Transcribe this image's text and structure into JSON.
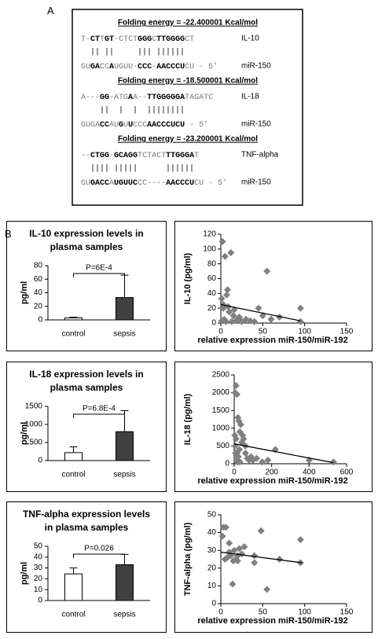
{
  "panel_labels": [
    "A",
    "B"
  ],
  "alignments": [
    {
      "energy": "Folding energy = -22.400001 Kcal/mol",
      "seq1": [
        {
          "text": "T-",
          "bold": false
        },
        {
          "text": "CT",
          "bold": true
        },
        {
          "text": "T",
          "bold": false
        },
        {
          "text": "GT",
          "bold": true
        },
        {
          "text": "-C",
          "bold": false
        },
        {
          "text": "TCT",
          "bold": false
        },
        {
          "text": "GGG",
          "bold": true
        },
        {
          "text": "C",
          "bold": false
        },
        {
          "text": "TTGGGG",
          "bold": true
        },
        {
          "text": "CT",
          "bold": false
        }
      ],
      "label1": "IL-10",
      "pairs": "  || ||     ||| ||||||",
      "seq2": [
        {
          "text": "GU",
          "bold": false
        },
        {
          "text": "GA",
          "bold": true
        },
        {
          "text": "CC",
          "bold": false
        },
        {
          "text": "A",
          "bold": true
        },
        {
          "text": "UGUU-",
          "bold": false
        },
        {
          "text": "CCC",
          "bold": true
        },
        {
          "text": "-",
          "bold": false
        },
        {
          "text": "AACCCU",
          "bold": true
        },
        {
          "text": "CU - 5′",
          "bold": false
        }
      ],
      "label2": "miR-150"
    },
    {
      "energy": "Folding energy = -18.500001 Kcal/mol",
      "seq1": [
        {
          "text": "A---",
          "bold": false
        },
        {
          "text": "GG",
          "bold": true
        },
        {
          "text": "-ATG",
          "bold": false
        },
        {
          "text": "A",
          "bold": true
        },
        {
          "text": "A--",
          "bold": false
        },
        {
          "text": "TTGGGGGA",
          "bold": true
        },
        {
          "text": "TAGATC",
          "bold": false
        }
      ],
      "label1": "IL-18",
      "pairs": "    ||  |  |  ||||||||",
      "seq2": [
        {
          "text": "GUGA",
          "bold": false
        },
        {
          "text": "CC",
          "bold": true
        },
        {
          "text": "AU",
          "bold": false
        },
        {
          "text": "G",
          "bold": true
        },
        {
          "text": "U",
          "bold": false
        },
        {
          "text": "U",
          "bold": true
        },
        {
          "text": "CCC",
          "bold": false
        },
        {
          "text": "AACCCUCU",
          "bold": true
        },
        {
          "text": " - 5′",
          "bold": false
        }
      ],
      "label2": "miR-150"
    },
    {
      "energy": "Folding energy = -23.200001 Kcal/mol",
      "seq1": [
        {
          "text": "--",
          "bold": false
        },
        {
          "text": "CTGG",
          "bold": true
        },
        {
          "text": "-",
          "bold": false
        },
        {
          "text": "GCAGG",
          "bold": true
        },
        {
          "text": "TCTACT",
          "bold": false
        },
        {
          "text": "TTGGGA",
          "bold": true
        },
        {
          "text": "T",
          "bold": false
        }
      ],
      "label1": "TNF-alpha",
      "pairs": "  |||| |||||      ||||||",
      "seq2": [
        {
          "text": "GU",
          "bold": false
        },
        {
          "text": "GACC",
          "bold": true
        },
        {
          "text": "A",
          "bold": false
        },
        {
          "text": "UGUUC",
          "bold": true
        },
        {
          "text": "CC----",
          "bold": false
        },
        {
          "text": "AACCCU",
          "bold": true
        },
        {
          "text": "CU - 5′",
          "bold": false
        }
      ],
      "label2": "miR-150"
    }
  ],
  "chart_data": [
    {
      "type": "bar",
      "title": "IL-10 expression levels in plasma samples",
      "ylabel": "pg/ml",
      "categories": [
        "control",
        "sepsis"
      ],
      "values": [
        3,
        33
      ],
      "errors": [
        1,
        33
      ],
      "colors": [
        "#ffffff",
        "#404040"
      ],
      "annotation": "P=6E-4",
      "ylim": [
        0,
        80
      ],
      "yticks": [
        0,
        20,
        40,
        60,
        80
      ]
    },
    {
      "type": "scatter",
      "ylabel": "IL-10 (pg/ml)",
      "xlabel": "relative expression miR-150/miR-192",
      "color": "#808080",
      "x": [
        1,
        2,
        3,
        5,
        7,
        8,
        12,
        4,
        6,
        10,
        15,
        18,
        20,
        22,
        25,
        3,
        9,
        30,
        40,
        45,
        50,
        55,
        60,
        70,
        95,
        95,
        13,
        1,
        16,
        35
      ],
      "y": [
        33,
        110,
        20,
        90,
        38,
        45,
        95,
        5,
        2,
        15,
        10,
        3,
        5,
        8,
        2,
        25,
        22,
        5,
        2,
        20,
        10,
        70,
        5,
        8,
        20,
        2,
        2,
        3,
        18,
        3
      ],
      "trend": {
        "x": [
          0,
          95
        ],
        "y": [
          25,
          3
        ]
      },
      "xlim": [
        0,
        150
      ],
      "xticks": [
        0,
        50,
        100,
        150
      ],
      "ylim": [
        0,
        120
      ],
      "yticks": [
        0,
        20,
        40,
        60,
        80,
        100,
        120
      ]
    },
    {
      "type": "bar",
      "title": "IL-18 expression levels in plasma samples",
      "ylabel": "pg/ml",
      "categories": [
        "control",
        "sepsis"
      ],
      "values": [
        220,
        800
      ],
      "errors": [
        160,
        580
      ],
      "colors": [
        "#ffffff",
        "#404040"
      ],
      "annotation": "P=6.8E-4",
      "ylim": [
        0,
        1500
      ],
      "yticks": [
        0,
        500,
        1000,
        1500
      ]
    },
    {
      "type": "scatter",
      "ylabel": "IL-18 (pg/ml)",
      "xlabel": "relative expression miR-150/miR-192",
      "color": "#808080",
      "x": [
        5,
        10,
        15,
        20,
        25,
        30,
        35,
        40,
        5,
        8,
        12,
        18,
        22,
        28,
        45,
        50,
        60,
        70,
        80,
        90,
        100,
        120,
        150,
        180,
        220,
        400,
        530,
        3,
        10,
        60,
        30,
        15
      ],
      "y": [
        2000,
        2200,
        1950,
        1300,
        1200,
        900,
        1100,
        600,
        500,
        300,
        100,
        50,
        200,
        400,
        800,
        700,
        300,
        150,
        100,
        200,
        100,
        150,
        50,
        100,
        400,
        100,
        50,
        800,
        700,
        500,
        50,
        300
      ],
      "trend": {
        "x": [
          0,
          530
        ],
        "y": [
          560,
          30
        ]
      },
      "xlim": [
        0,
        600
      ],
      "xticks": [
        0,
        200,
        400,
        600
      ],
      "ylim": [
        0,
        2500
      ],
      "yticks": [
        0,
        500,
        1000,
        1500,
        2000,
        2500
      ]
    },
    {
      "type": "bar",
      "title": "TNF-alpha expression levels in plasma samples",
      "ylabel": "pg/ml",
      "categories": [
        "control",
        "sepsis"
      ],
      "values": [
        24.5,
        33
      ],
      "errors": [
        5.5,
        9.5
      ],
      "colors": [
        "#ffffff",
        "#404040"
      ],
      "annotation": "P=0.026",
      "ylim": [
        0,
        50
      ],
      "yticks": [
        0,
        10,
        20,
        30,
        40,
        50
      ]
    },
    {
      "type": "scatter",
      "ylabel": "TNF-alpha (pg/ml)",
      "xlabel": "relative expression miR-150/miR-192",
      "color": "#808080",
      "x": [
        2,
        3,
        6,
        8,
        10,
        12,
        14,
        16,
        18,
        20,
        22,
        25,
        28,
        15,
        5,
        10,
        40,
        40,
        48,
        55,
        70,
        95,
        95,
        20
      ],
      "y": [
        38,
        43,
        43,
        26,
        34,
        27,
        11,
        30,
        25,
        24,
        31,
        28,
        32,
        24,
        25,
        29,
        27,
        23,
        41,
        8,
        25,
        36,
        23,
        27
      ],
      "trend": {
        "x": [
          0,
          97
        ],
        "y": [
          29,
          23
        ]
      },
      "xlim": [
        0,
        150
      ],
      "xticks": [
        0,
        50,
        100,
        150
      ],
      "ylim": [
        0,
        50
      ],
      "yticks": [
        0,
        10,
        20,
        30,
        40,
        50
      ]
    }
  ]
}
